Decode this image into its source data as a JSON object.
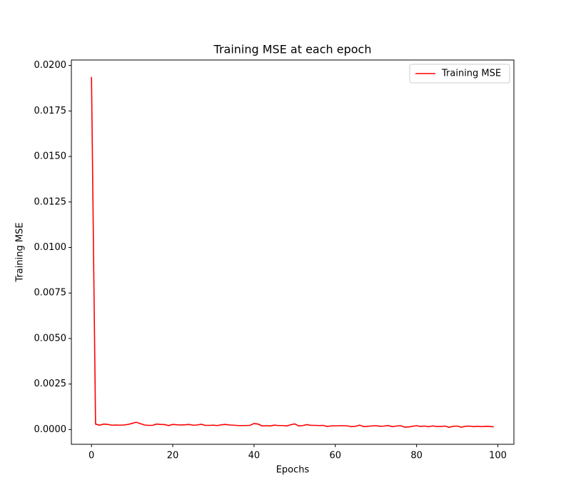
{
  "chart_data": {
    "type": "line",
    "title": "Training MSE at each epoch",
    "xlabel": "Epochs",
    "ylabel": "Training MSE",
    "x": [
      0,
      1,
      2,
      3,
      4,
      5,
      6,
      7,
      8,
      9,
      10,
      11,
      12,
      13,
      14,
      15,
      16,
      17,
      18,
      19,
      20,
      21,
      22,
      23,
      24,
      25,
      26,
      27,
      28,
      29,
      30,
      31,
      32,
      33,
      34,
      35,
      36,
      37,
      38,
      39,
      40,
      41,
      42,
      43,
      44,
      45,
      46,
      47,
      48,
      49,
      50,
      51,
      52,
      53,
      54,
      55,
      56,
      57,
      58,
      59,
      60,
      61,
      62,
      63,
      64,
      65,
      66,
      67,
      68,
      69,
      70,
      71,
      72,
      73,
      74,
      75,
      76,
      77,
      78,
      79,
      80,
      81,
      82,
      83,
      84,
      85,
      86,
      87,
      88,
      89,
      90,
      91,
      92,
      93,
      94,
      95,
      96,
      97,
      98,
      99
    ],
    "series": [
      {
        "name": "Training MSE",
        "color": "#ff0000",
        "values": [
          0.01937,
          0.0003,
          0.00024,
          0.0003,
          0.00028,
          0.00024,
          0.00025,
          0.00024,
          0.00025,
          0.00028,
          0.00034,
          0.0004,
          0.00033,
          0.00025,
          0.00023,
          0.00023,
          0.0003,
          0.00028,
          0.00027,
          0.00022,
          0.00028,
          0.00026,
          0.00025,
          0.00026,
          0.00028,
          0.00024,
          0.00025,
          0.00029,
          0.00023,
          0.00023,
          0.00024,
          0.00022,
          0.00026,
          0.00028,
          0.00025,
          0.00024,
          0.00022,
          0.00022,
          0.00022,
          0.00023,
          0.00033,
          0.0003,
          0.0002,
          0.00021,
          0.0002,
          0.00024,
          0.00022,
          0.00022,
          0.0002,
          0.00026,
          0.00031,
          0.0002,
          0.00022,
          0.00027,
          0.00023,
          0.00023,
          0.00022,
          0.00023,
          0.00017,
          0.0002,
          0.0002,
          0.00021,
          0.00021,
          0.0002,
          0.00016,
          0.00018,
          0.00024,
          0.00016,
          0.00018,
          0.0002,
          0.00021,
          0.00018,
          0.00019,
          0.00022,
          0.00016,
          0.00019,
          0.00021,
          0.00014,
          0.00014,
          0.00018,
          0.00021,
          0.00017,
          0.00019,
          0.00016,
          0.0002,
          0.00017,
          0.00017,
          0.00019,
          0.00012,
          0.00018,
          0.00019,
          0.00013,
          0.00018,
          0.00019,
          0.00016,
          0.00018,
          0.00016,
          0.00018,
          0.00017,
          0.00015
        ]
      }
    ],
    "xlim": [
      -4.95,
      103.95
    ],
    "xticks": [
      0,
      20,
      40,
      60,
      80,
      100
    ],
    "ylim": [
      -0.00081,
      0.0203
    ],
    "yticks": [
      {
        "value": 0,
        "label": "0.0000"
      },
      {
        "value": 0.0025,
        "label": "0.0025"
      },
      {
        "value": 0.005,
        "label": "0.0050"
      },
      {
        "value": 0.0075,
        "label": "0.0075"
      },
      {
        "value": 0.01,
        "label": "0.0100"
      },
      {
        "value": 0.0125,
        "label": "0.0125"
      },
      {
        "value": 0.015,
        "label": "0.0150"
      },
      {
        "value": 0.0175,
        "label": "0.0175"
      },
      {
        "value": 0.02,
        "label": "0.0200"
      }
    ],
    "legend": "upper right"
  }
}
